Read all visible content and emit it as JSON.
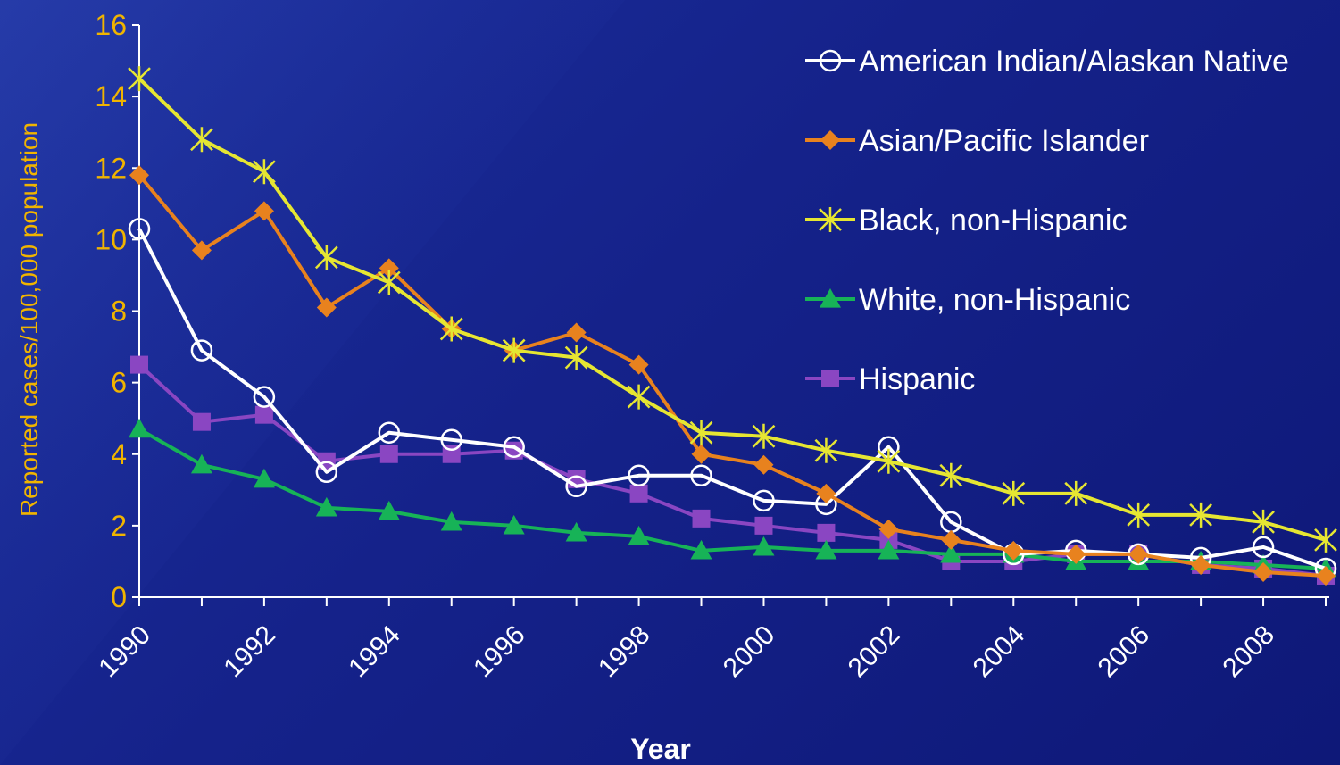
{
  "chart_data": {
    "type": "line",
    "title": "",
    "xlabel": "Year",
    "ylabel": "Reported cases/100,000 population",
    "ylim": [
      0,
      16
    ],
    "yticks": [
      0,
      2,
      4,
      6,
      8,
      10,
      12,
      14,
      16
    ],
    "x": [
      1990,
      1991,
      1992,
      1993,
      1994,
      1995,
      1996,
      1997,
      1998,
      1999,
      2000,
      2001,
      2002,
      2003,
      2004,
      2005,
      2006,
      2007,
      2008,
      2009
    ],
    "xtick_labels": [
      "1990",
      "1992",
      "1994",
      "1996",
      "1998",
      "2000",
      "2002",
      "2004",
      "2006",
      "2008"
    ],
    "legend_position": "top-right",
    "grid": false,
    "series": [
      {
        "name": "American Indian/Alaskan Native",
        "color": "#ffffff",
        "marker": "circle",
        "values": [
          10.3,
          6.9,
          5.6,
          3.5,
          4.6,
          4.4,
          4.2,
          3.1,
          3.4,
          3.4,
          2.7,
          2.6,
          4.2,
          2.1,
          1.2,
          1.3,
          1.2,
          1.1,
          1.4,
          0.8
        ]
      },
      {
        "name": "Asian/Pacific Islander",
        "color": "#e8821e",
        "marker": "diamond",
        "values": [
          11.8,
          9.7,
          10.8,
          8.1,
          9.2,
          7.5,
          6.9,
          7.4,
          6.5,
          4.0,
          3.7,
          2.9,
          1.9,
          1.6,
          1.3,
          1.2,
          1.2,
          0.9,
          0.7,
          0.6
        ]
      },
      {
        "name": "Black, non-Hispanic",
        "color": "#e6e632",
        "marker": "star",
        "values": [
          14.5,
          12.8,
          11.9,
          9.5,
          8.8,
          7.5,
          6.9,
          6.7,
          5.6,
          4.6,
          4.5,
          4.1,
          3.8,
          3.4,
          2.9,
          2.9,
          2.3,
          2.3,
          2.1,
          1.6
        ]
      },
      {
        "name": "White, non-Hispanic",
        "color": "#17b357",
        "marker": "triangle",
        "values": [
          4.7,
          3.7,
          3.3,
          2.5,
          2.4,
          2.1,
          2.0,
          1.8,
          1.7,
          1.3,
          1.4,
          1.3,
          1.3,
          1.2,
          1.2,
          1.0,
          1.0,
          1.0,
          0.9,
          0.8
        ]
      },
      {
        "name": "Hispanic",
        "color": "#8a46c2",
        "marker": "square",
        "values": [
          6.5,
          4.9,
          5.1,
          3.8,
          4.0,
          4.0,
          4.1,
          3.3,
          2.9,
          2.2,
          2.0,
          1.8,
          1.6,
          1.0,
          1.0,
          1.2,
          1.2,
          0.9,
          0.8,
          0.6
        ]
      }
    ]
  }
}
